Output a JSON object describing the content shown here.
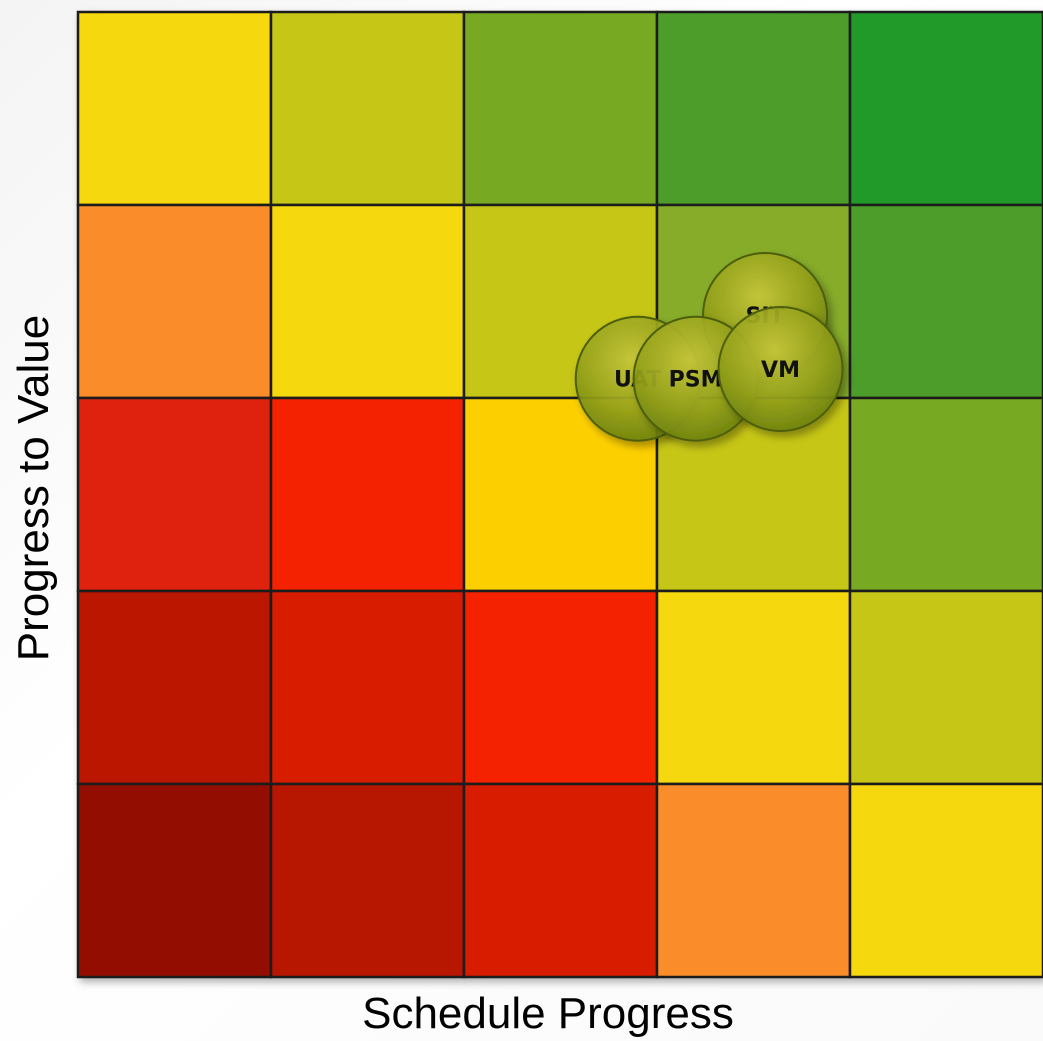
{
  "chart_data": {
    "type": "heatmap",
    "title": "",
    "xlabel": "Schedule Progress",
    "ylabel": "Progress to Value",
    "grid": true,
    "rows": 5,
    "cols": 5,
    "cell_colors": [
      [
        "#f5d80a",
        "#c6c619",
        "#77aa22",
        "#4e9d2a",
        "#229a2b"
      ],
      [
        "#fb8c2b",
        "#f5d80a",
        "#c6c619",
        "#86ac2c",
        "#4e9d2a"
      ],
      [
        "#df200a",
        "#f52300",
        "#fcd000",
        "#c6c619",
        "#77aa22"
      ],
      [
        "#bb1600",
        "#d81f00",
        "#f52300",
        "#f5d80a",
        "#c6c619"
      ],
      [
        "#931000",
        "#b71600",
        "#d81f00",
        "#fb8c2b",
        "#f5d80a"
      ]
    ],
    "points": [
      {
        "label": "SIT",
        "x": 3.56,
        "y": 3.43
      },
      {
        "label": "UAT",
        "x": 2.9,
        "y": 3.1
      },
      {
        "label": "PSM",
        "x": 3.2,
        "y": 3.1
      },
      {
        "label": "VM",
        "x": 3.64,
        "y": 3.15
      }
    ]
  }
}
